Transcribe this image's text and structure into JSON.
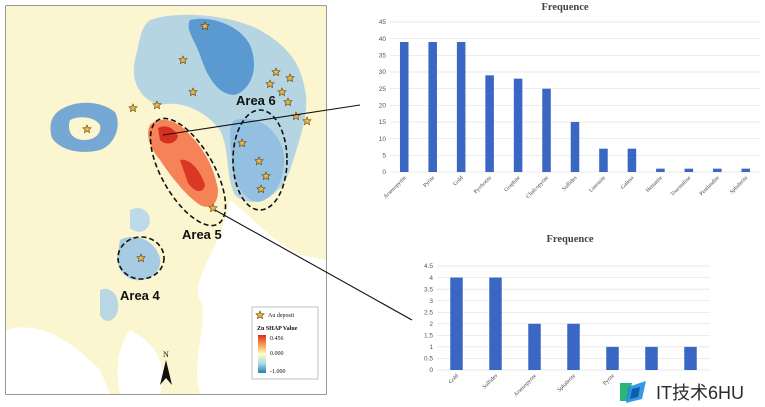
{
  "map": {
    "areas": [
      "Area 6",
      "Area 5",
      "Area 4"
    ],
    "legend": {
      "deposit_label": "Au deposit",
      "title": "Zn SHAP Value",
      "max": "0.456",
      "mid": "0.000",
      "min": "-1.000"
    },
    "north": "N"
  },
  "chart_data": [
    {
      "type": "bar",
      "title": "Frequence",
      "categories": [
        "Arsenopyrite",
        "Pyrite",
        "Gold",
        "Pyrrhotite",
        "Graphite",
        "Chalcopyrite",
        "Sulfides",
        "Limonite",
        "Galena",
        "Hematite",
        "Tourmaline",
        "Pentlandite",
        "Sphalerite"
      ],
      "values": [
        39,
        39,
        39,
        29,
        28,
        25,
        15,
        7,
        7,
        1,
        1,
        1,
        1
      ],
      "ylim": [
        0,
        45
      ],
      "yticks": [
        0,
        5,
        10,
        15,
        20,
        25,
        30,
        35,
        40,
        45
      ],
      "color": "#3a66c4",
      "grid": true
    },
    {
      "type": "bar",
      "title": "Frequence",
      "categories": [
        "Gold",
        "Sulfides",
        "Arsenopyrite",
        "Sphalerite",
        "Pyrite",
        "",
        ""
      ],
      "values": [
        4,
        4,
        2,
        2,
        1,
        1,
        1
      ],
      "ylim": [
        0,
        4.5
      ],
      "yticks": [
        0,
        0.5,
        1,
        1.5,
        2,
        2.5,
        3,
        3.5,
        4,
        4.5
      ],
      "color": "#3a66c4",
      "grid": true
    }
  ],
  "watermark": "IT技术6HU"
}
